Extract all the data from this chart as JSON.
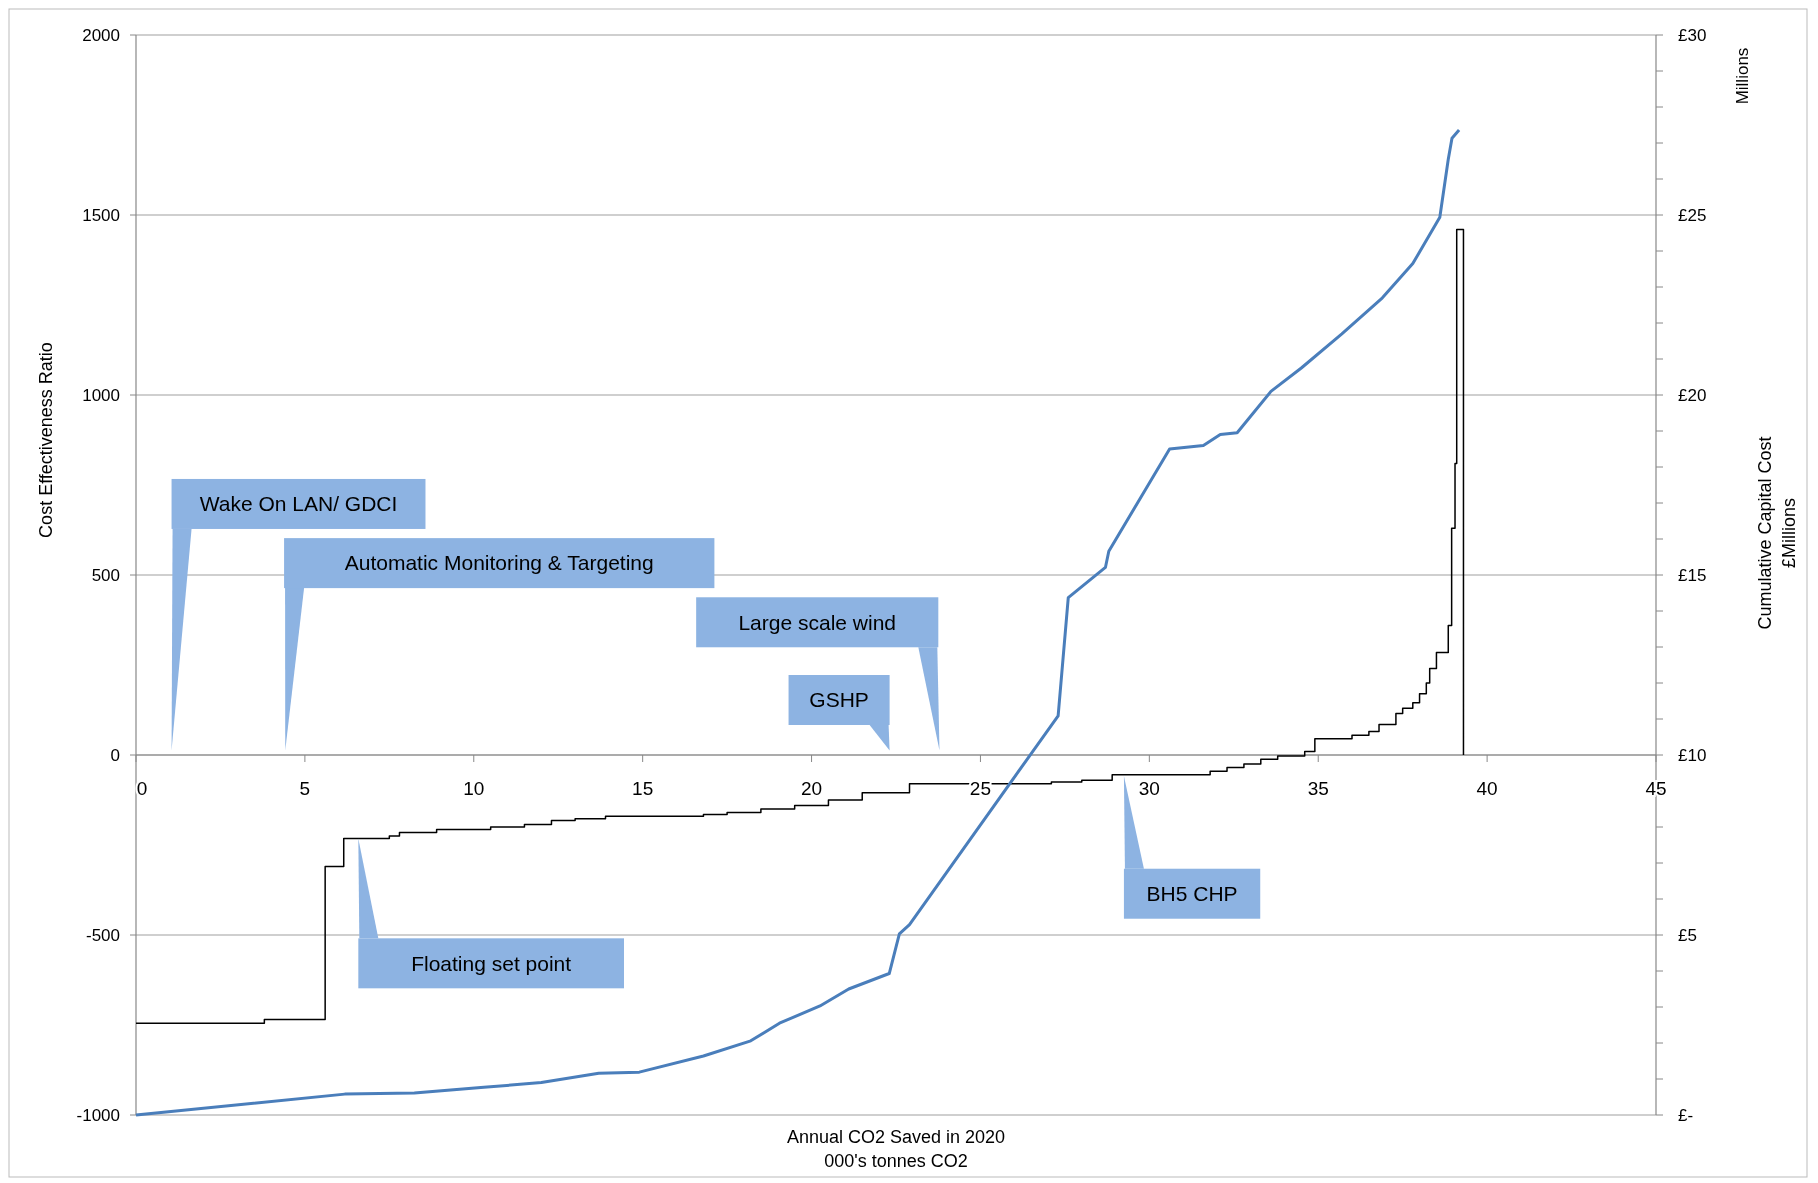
{
  "chart_data": {
    "type": "line",
    "xlabel": "Annual CO2 Saved in 2020\n000's tonnes CO2",
    "ylabel": "Cost Effectiveness Ratio",
    "y2label": "Cumulative Capital Cost\n£Millions",
    "xlim": [
      0,
      45
    ],
    "xticks": [
      0,
      5,
      10,
      15,
      20,
      25,
      30,
      35,
      40,
      45
    ],
    "ylim": [
      -1000,
      2000
    ],
    "yticks": [
      -1000,
      -500,
      0,
      500,
      1000,
      1500,
      2000
    ],
    "y2lim": [
      0,
      30
    ],
    "y2ticks": [
      {
        "value": 0,
        "label": "£-"
      },
      {
        "value": 1,
        "label": null
      },
      {
        "value": 2,
        "label": null
      },
      {
        "value": 3,
        "label": null
      },
      {
        "value": 4,
        "label": null
      },
      {
        "value": 5,
        "label": "£5"
      },
      {
        "value": 6,
        "label": null
      },
      {
        "value": 7,
        "label": null
      },
      {
        "value": 8,
        "label": null
      },
      {
        "value": 9,
        "label": null
      },
      {
        "value": 10,
        "label": "£10"
      },
      {
        "value": 11,
        "label": null
      },
      {
        "value": 12,
        "label": null
      },
      {
        "value": 13,
        "label": null
      },
      {
        "value": 14,
        "label": null
      },
      {
        "value": 15,
        "label": "£15"
      },
      {
        "value": 16,
        "label": null
      },
      {
        "value": 17,
        "label": null
      },
      {
        "value": 18,
        "label": null
      },
      {
        "value": 19,
        "label": null
      },
      {
        "value": 20,
        "label": "£20"
      },
      {
        "value": 21,
        "label": null
      },
      {
        "value": 22,
        "label": null
      },
      {
        "value": 23,
        "label": null
      },
      {
        "value": 24,
        "label": null
      },
      {
        "value": 25,
        "label": "£25"
      },
      {
        "value": 26,
        "label": null
      },
      {
        "value": 27,
        "label": null
      },
      {
        "value": 28,
        "label": null
      },
      {
        "value": 29,
        "label": null
      },
      {
        "value": 30,
        "label": "£30"
      }
    ],
    "grid": "y",
    "series": [
      {
        "type": "step",
        "color": "#000000",
        "x": [
          0,
          3.8,
          5.6,
          6.15,
          7.5,
          7.8,
          8.9,
          10.5,
          11.5,
          12.3,
          13.0,
          13.9,
          16.8,
          17.5,
          18.5,
          19.5,
          20.5,
          21.5,
          22.9,
          27.1,
          28.0,
          28.9,
          31.8,
          32.3,
          32.8,
          33.3,
          33.8,
          34.6,
          34.9,
          36.0,
          36.5,
          36.8,
          37.3,
          37.5,
          37.8,
          38.0,
          38.2,
          38.3,
          38.5,
          38.85,
          38.95,
          39.05,
          39.1,
          39.3
        ],
        "values": [
          -745,
          -735,
          -310,
          -232,
          -225,
          -215,
          -207,
          -200,
          -193,
          -182,
          -177,
          -170,
          -165,
          -160,
          -150,
          -140,
          -125,
          -105,
          -80,
          -75,
          -70,
          -55,
          -45,
          -35,
          -25,
          -12,
          -3,
          10,
          45,
          55,
          65,
          85,
          115,
          130,
          145,
          170,
          200,
          240,
          285,
          360,
          630,
          810,
          1460,
          0
        ]
      },
      {
        "axis": "y2",
        "color": "#4a7ebb",
        "x": [
          0,
          6.18,
          8.24,
          10.3,
          12.0,
          13.7,
          14.9,
          16.8,
          18.2,
          19.05,
          20.25,
          21.1,
          22.3,
          22.6,
          22.9,
          27.3,
          27.6,
          28.7,
          28.8,
          30.6,
          31.6,
          32.1,
          32.6,
          33.6,
          34.5,
          35.7,
          36.9,
          37.8,
          38.6,
          38.85,
          38.96,
          39.17
        ],
        "values": [
          0,
          0.58,
          0.61,
          0.77,
          0.9,
          1.16,
          1.19,
          1.64,
          2.06,
          2.55,
          3.03,
          3.5,
          3.93,
          5.03,
          5.29,
          11.09,
          14.37,
          15.21,
          15.66,
          18.5,
          18.6,
          18.9,
          18.95,
          20.1,
          20.75,
          21.7,
          22.7,
          23.65,
          24.94,
          26.55,
          27.13,
          27.36
        ]
      }
    ],
    "annotations": [
      "Wake On LAN/ GDCI",
      "Automatic Monitoring & Targeting",
      "Large scale wind",
      "GSHP",
      "Floating set point",
      "BH5 CHP",
      "Millions"
    ]
  }
}
